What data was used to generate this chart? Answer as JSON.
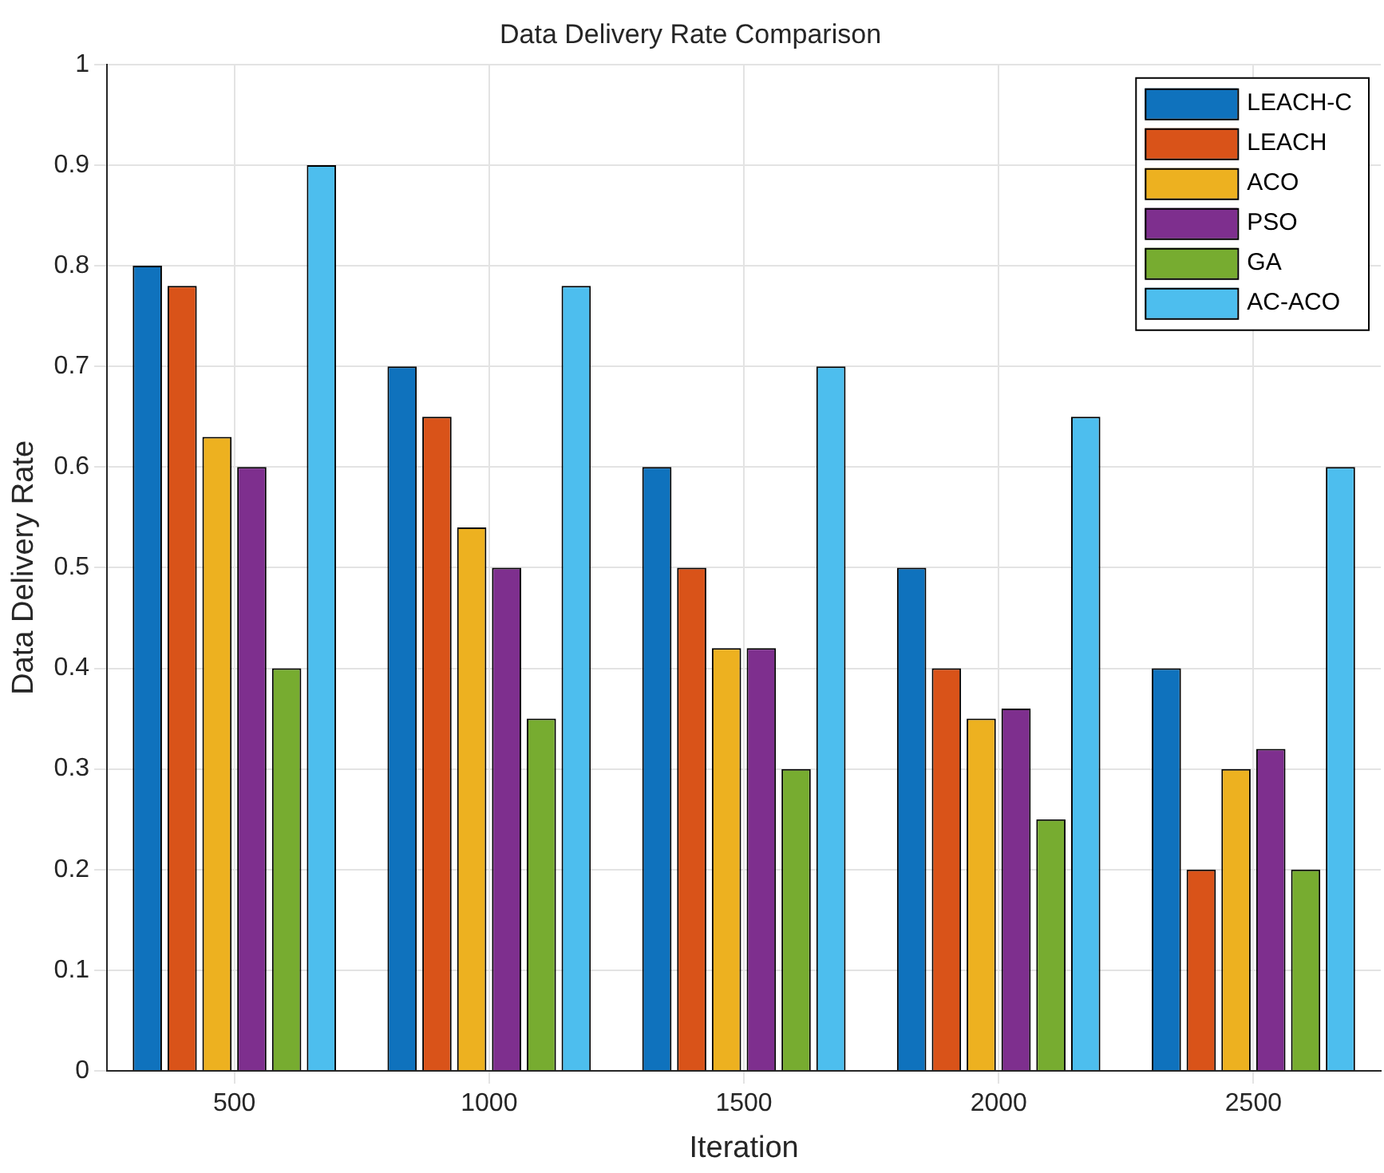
{
  "chart_data": {
    "type": "bar",
    "title": "Data Delivery Rate Comparison",
    "xlabel": "Iteration",
    "ylabel": "Data Delivery Rate",
    "categories": [
      "500",
      "1000",
      "1500",
      "2000",
      "2500"
    ],
    "series": [
      {
        "name": "LEACH-C",
        "color": "#0f72bd",
        "values": [
          0.8,
          0.7,
          0.6,
          0.5,
          0.4
        ]
      },
      {
        "name": "LEACH",
        "color": "#d95319",
        "values": [
          0.78,
          0.65,
          0.5,
          0.4,
          0.2
        ]
      },
      {
        "name": "ACO",
        "color": "#edb120",
        "values": [
          0.63,
          0.54,
          0.42,
          0.35,
          0.3
        ]
      },
      {
        "name": "PSO",
        "color": "#7e2f8e",
        "values": [
          0.6,
          0.5,
          0.42,
          0.36,
          0.32
        ]
      },
      {
        "name": "GA",
        "color": "#77ac30",
        "values": [
          0.4,
          0.35,
          0.3,
          0.25,
          0.2
        ]
      },
      {
        "name": "AC-ACO",
        "color": "#4dbeee",
        "values": [
          0.9,
          0.78,
          0.7,
          0.65,
          0.6
        ]
      }
    ],
    "ylim": [
      0,
      1
    ],
    "yticks": [
      0,
      0.1,
      0.2,
      0.3,
      0.4,
      0.5,
      0.6,
      0.7,
      0.8,
      0.9,
      1
    ],
    "grid": true,
    "legend": "top right"
  }
}
